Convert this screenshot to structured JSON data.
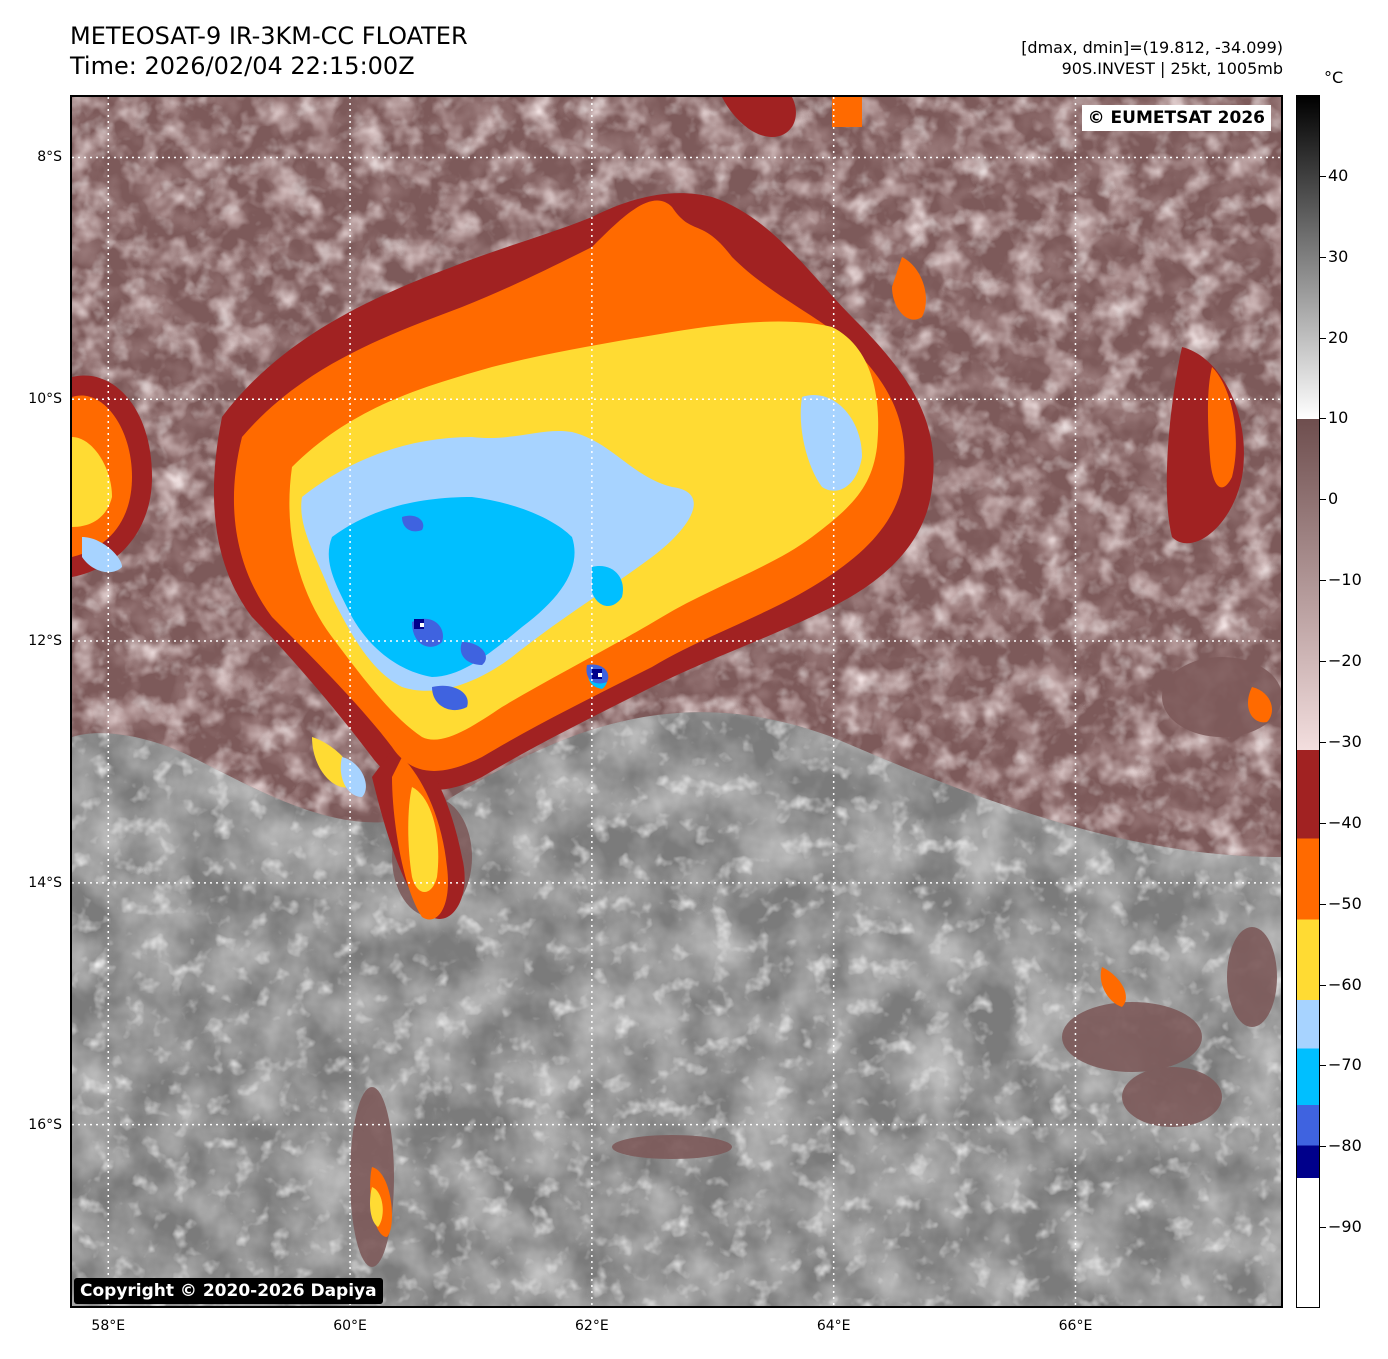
{
  "header": {
    "title_line1": "METEOSAT-9 IR-3KM-CC FLOATER",
    "title_line2": "Time: 2026/02/04 22:15:00Z",
    "info_line1": "[dmax, dmin]=(19.812, -34.099)",
    "info_line2": "90S.INVEST | 25kt, 1005mb"
  },
  "map": {
    "watermark": "© EUMETSAT 2026",
    "credit": "Copyright © 2020-2026 Dapiya",
    "lon_min": 57.7,
    "lon_max": 67.7,
    "lat_max": -7.5,
    "lat_min": -17.5,
    "lat_ticks": [
      {
        "value": -8,
        "label": "8°S"
      },
      {
        "value": -10,
        "label": "10°S"
      },
      {
        "value": -12,
        "label": "12°S"
      },
      {
        "value": -14,
        "label": "14°S"
      },
      {
        "value": -16,
        "label": "16°S"
      }
    ],
    "lon_ticks": [
      {
        "value": 58,
        "label": "58°E"
      },
      {
        "value": 60,
        "label": "60°E"
      },
      {
        "value": 62,
        "label": "62°E"
      },
      {
        "value": 64,
        "label": "64°E"
      },
      {
        "value": 66,
        "label": "66°E"
      }
    ],
    "gridline_color": "#ffffff"
  },
  "colorbar": {
    "unit": "°C",
    "vmax": 50,
    "vmin": -100,
    "ticks": [
      {
        "value": 40,
        "label": "40"
      },
      {
        "value": 30,
        "label": "30"
      },
      {
        "value": 20,
        "label": "20"
      },
      {
        "value": 10,
        "label": "10"
      },
      {
        "value": 0,
        "label": "0"
      },
      {
        "value": -10,
        "label": "−10"
      },
      {
        "value": -20,
        "label": "−20"
      },
      {
        "value": -30,
        "label": "−30"
      },
      {
        "value": -40,
        "label": "−40"
      },
      {
        "value": -50,
        "label": "−50"
      },
      {
        "value": -60,
        "label": "−60"
      },
      {
        "value": -70,
        "label": "−70"
      },
      {
        "value": -80,
        "label": "−80"
      },
      {
        "value": -90,
        "label": "−90"
      }
    ],
    "bands": [
      {
        "from": 50,
        "to": 10,
        "color_top": "#000000",
        "color_bottom": "#ffffff"
      },
      {
        "from": 10,
        "to": -31,
        "color_top": "#6e4e4e",
        "color_bottom": "#f3dede"
      },
      {
        "from": -31,
        "to": -42,
        "color_top": "#a12222",
        "color_bottom": "#a12222"
      },
      {
        "from": -42,
        "to": -52,
        "color_top": "#ff6a00",
        "color_bottom": "#ff6a00"
      },
      {
        "from": -52,
        "to": -62,
        "color_top": "#ffdb33",
        "color_bottom": "#ffdb33"
      },
      {
        "from": -62,
        "to": -68,
        "color_top": "#a7d3ff",
        "color_bottom": "#a7d3ff"
      },
      {
        "from": -68,
        "to": -75,
        "color_top": "#00bfff",
        "color_bottom": "#00bfff"
      },
      {
        "from": -75,
        "to": -80,
        "color_top": "#3f63e0",
        "color_bottom": "#3f63e0"
      },
      {
        "from": -80,
        "to": -84,
        "color_top": "#00008b",
        "color_bottom": "#00008b"
      },
      {
        "from": -84,
        "to": -100,
        "color_top": "#ffffff",
        "color_bottom": "#ffffff"
      }
    ]
  },
  "palette": {
    "warm_gray_dark": "#5e5e5e",
    "warm_gray_light": "#d9d9d9",
    "mid_brown": "#7a5454",
    "pink": "#dcbcbc",
    "dark_red": "#a12222",
    "orange": "#ff6a00",
    "yellow": "#ffdb33",
    "light_blue": "#a7d3ff",
    "cyan": "#00bfff",
    "blue": "#3f63e0",
    "navy": "#00008b"
  }
}
